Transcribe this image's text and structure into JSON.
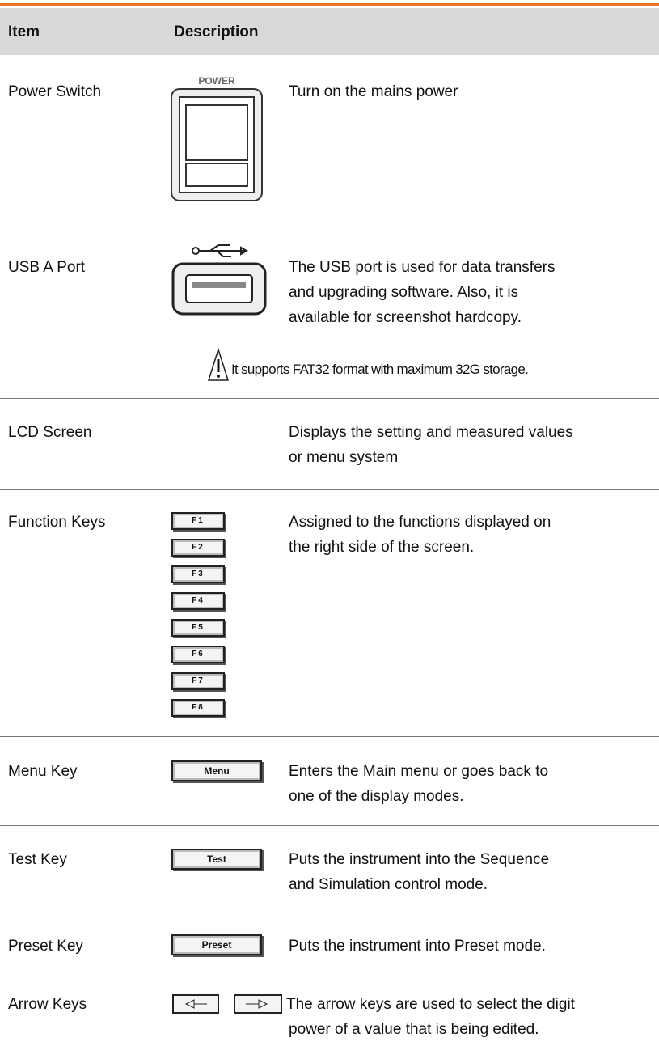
{
  "header": {
    "item": "Item",
    "description": "Description"
  },
  "rows": [
    {
      "item": "Power Switch",
      "image_label": "POWER",
      "description": [
        "Turn on the mains power"
      ]
    },
    {
      "item": "USB A Port",
      "description": [
        "The USB port is used for data transfers",
        "and upgrading software. Also, it is",
        "available for screenshot hardcopy."
      ],
      "note": "It supports FAT32 format with maximum 32G storage."
    },
    {
      "item": "LCD Screen",
      "description": [
        "Displays the setting and measured values",
        "or menu system"
      ]
    },
    {
      "item": "Function Keys",
      "keys": [
        "F1",
        "F2",
        "F3",
        "F4",
        "F5",
        "F6",
        "F7",
        "F8"
      ],
      "description": [
        "Assigned to the functions displayed on",
        "the right side of the screen."
      ]
    },
    {
      "item": "Menu Key",
      "key": "Menu",
      "description": [
        "Enters the Main menu or goes back to",
        "one of the display modes."
      ]
    },
    {
      "item": "Test Key",
      "key": "Test",
      "description": [
        "Puts the instrument into the Sequence",
        "and Simulation control mode."
      ]
    },
    {
      "item": "Preset Key",
      "key": "Preset",
      "description": [
        "Puts the instrument into Preset mode."
      ]
    },
    {
      "item": "Arrow Keys",
      "description": [
        "The arrow keys are used to select the digit",
        "power of a value that is being edited."
      ]
    }
  ]
}
